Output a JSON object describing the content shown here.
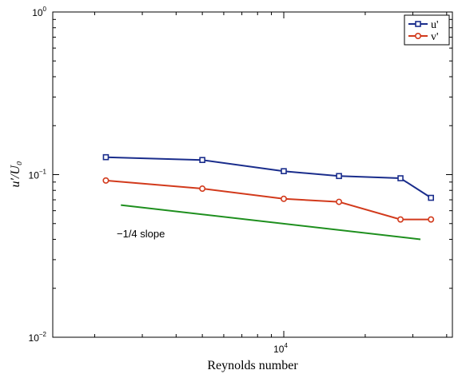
{
  "chart_data": {
    "type": "line",
    "title": "",
    "xlabel": "Reynolds number",
    "ylabel": "u′/U₀",
    "xscale": "log",
    "yscale": "log",
    "xlim": [
      1400,
      42000
    ],
    "ylim": [
      0.01,
      1
    ],
    "x_ticks": [
      {
        "base": "10",
        "exp": "4"
      }
    ],
    "y_ticks": [
      {
        "value": 0.01,
        "base": "10",
        "exp": "−2"
      },
      {
        "value": 0.1,
        "base": "10",
        "exp": "−1"
      },
      {
        "value": 1,
        "base": "10",
        "exp": "0"
      }
    ],
    "grid": false,
    "legend": "top-right",
    "series": [
      {
        "name": "u'",
        "color": "#1a2d8c",
        "marker": "square",
        "x": [
          2200,
          5000,
          10000,
          16000,
          27000,
          35000
        ],
        "values": [
          0.128,
          0.123,
          0.105,
          0.098,
          0.095,
          0.072
        ]
      },
      {
        "name": "v'",
        "color": "#d23a1c",
        "marker": "circle",
        "x": [
          2200,
          5000,
          10000,
          16000,
          27000,
          35000
        ],
        "values": [
          0.092,
          0.082,
          0.071,
          0.068,
          0.053,
          0.053
        ]
      }
    ],
    "reference_line": {
      "color": "#1e8f1e",
      "x": [
        2500,
        32000
      ],
      "values": [
        0.065,
        0.04
      ],
      "label": "−1/4 slope"
    }
  }
}
